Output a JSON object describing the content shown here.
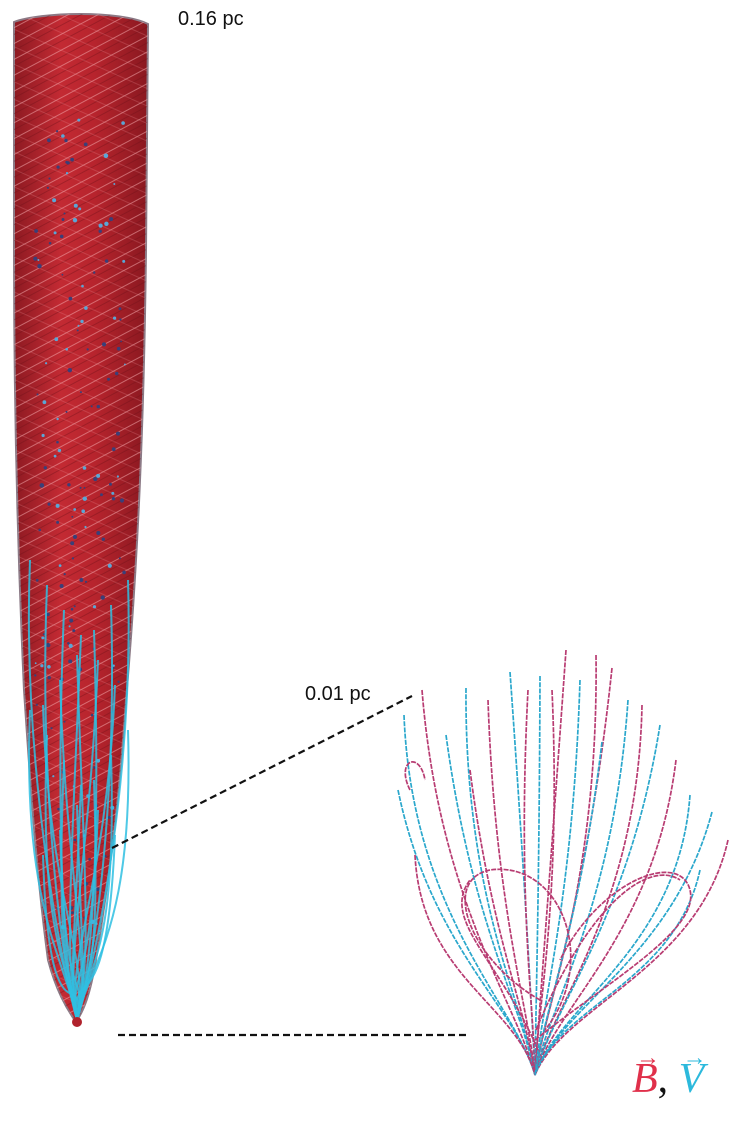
{
  "labels": {
    "large_scale": "0.16 pc",
    "small_scale": "0.01 pc"
  },
  "legend": {
    "b_symbol": "B",
    "separator": ",",
    "v_symbol": "V",
    "arrow": "→"
  },
  "colors": {
    "b_field": "#e0304a",
    "v_field": "#2cb9dc",
    "column_red": "#b0222c",
    "field_line_magenta": "#b83c72",
    "field_line_cyan": "#2aa7cc",
    "dashed_guide": "#111111"
  }
}
